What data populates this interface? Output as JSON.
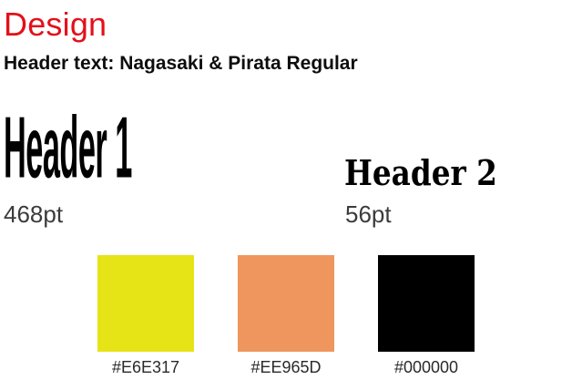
{
  "page": {
    "title": "Design",
    "subtitle": "Header text: Nagasaki & Pirata Regular"
  },
  "headers": [
    {
      "sample": "Header 1",
      "size": "468pt"
    },
    {
      "sample": "Header 2",
      "size": "56pt"
    }
  ],
  "swatches": [
    {
      "color": "#E6E317",
      "label": "#E6E317"
    },
    {
      "color": "#EE965D",
      "label": "#EE965D"
    },
    {
      "color": "#000000",
      "label": "#000000"
    }
  ]
}
